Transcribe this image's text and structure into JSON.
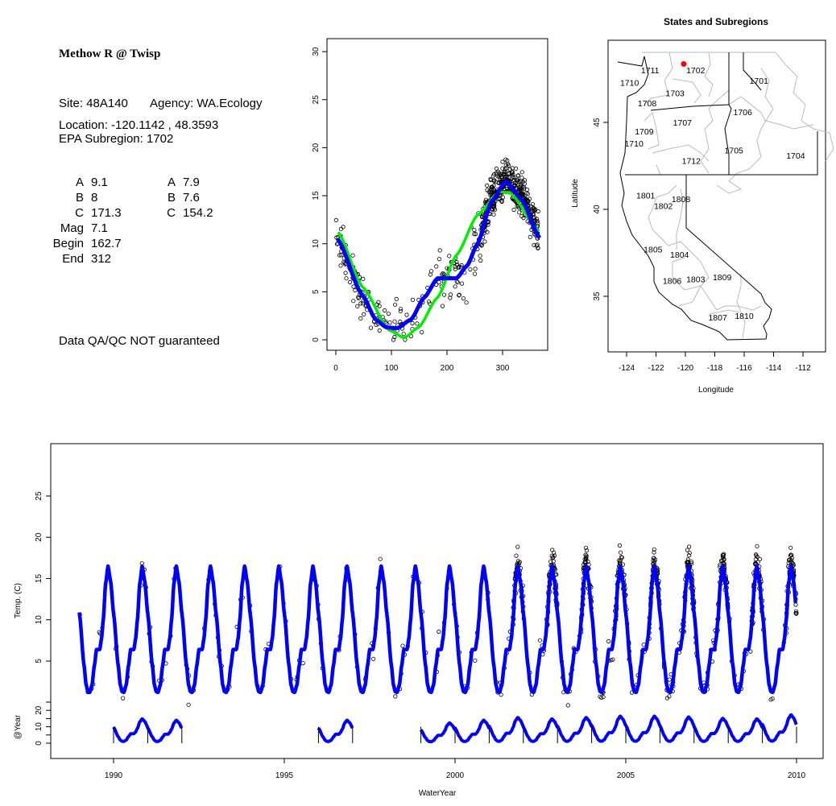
{
  "info_panel": {
    "title": "Methow R @ Twisp",
    "site": "Site: 48A140",
    "agency": "Agency: WA.Ecology",
    "location": "Location: -120.1142 , 48.3593",
    "subregion": "EPA Subregion: 1702",
    "params_left": [
      {
        "label": "A",
        "value": "9.1"
      },
      {
        "label": "B",
        "value": "8"
      },
      {
        "label": "C",
        "value": "171.3"
      },
      {
        "label": "Mag",
        "value": "7.1"
      },
      {
        "label": "Begin",
        "value": "162.7"
      },
      {
        "label": "End",
        "value": "312"
      }
    ],
    "params_right": [
      {
        "label": "A",
        "value": "7.9"
      },
      {
        "label": "B",
        "value": "7.6"
      },
      {
        "label": "C",
        "value": "154.2"
      }
    ],
    "disclaimer": "Data QA/QC NOT guaranteed",
    "disclaimer_color": "#c0392b"
  },
  "chart_data": [
    {
      "type": "scatter",
      "title": "",
      "xlabel": "",
      "ylabel": "",
      "xlim": [
        -5,
        370
      ],
      "ylim": [
        -1,
        31
      ],
      "x_ticks": [
        "0",
        "100",
        "200",
        "300"
      ],
      "y_ticks": [
        "0",
        "5",
        "10",
        "15",
        "20",
        "25",
        "30"
      ],
      "observation_density": [
        {
          "from": 0,
          "to": 60,
          "n": 70,
          "noise": 1.4
        },
        {
          "from": 60,
          "to": 150,
          "n": 45,
          "noise": 1.6
        },
        {
          "from": 150,
          "to": 260,
          "n": 70,
          "noise": 1.8
        },
        {
          "from": 260,
          "to": 365,
          "n": 420,
          "noise": 1.3
        }
      ],
      "series": [
        {
          "name": "blue fit",
          "color": "#0000ff",
          "x": [
            3,
            48,
            72,
            91,
            110,
            135,
            159,
            183,
            217,
            236,
            255,
            280,
            306,
            333,
            367
          ],
          "y": [
            10.5,
            4.6,
            2.1,
            1.3,
            1.2,
            2.1,
            4.4,
            6.4,
            6.4,
            7.7,
            10.0,
            14.4,
            16.5,
            14.7,
            10.6
          ]
        },
        {
          "name": "green fit",
          "color": "#00ee00",
          "x": [
            4,
            48,
            96,
            123,
            149,
            183,
            217,
            255,
            294,
            313,
            367
          ],
          "y": [
            11.2,
            5.5,
            1.0,
            0.2,
            1.3,
            4.4,
            8.8,
            13.0,
            15.4,
            15.3,
            11.3
          ]
        }
      ]
    },
    {
      "type": "map",
      "title": "States and Subregions",
      "xlabel": "Longitude",
      "ylabel": "Latitude",
      "x_ticks": [
        "-124",
        "-122",
        "-120",
        "-118",
        "-116",
        "-114",
        "-112"
      ],
      "y_ticks": [
        "35",
        "40",
        "45"
      ],
      "site": {
        "lon": -120.1142,
        "lat": 48.3593,
        "color": "#ff0000"
      },
      "regions": [
        {
          "id": "1702",
          "lon": -119.3,
          "lat": 48.0
        },
        {
          "id": "1701",
          "lon": -115.0,
          "lat": 47.4
        },
        {
          "id": "1711",
          "lon": -122.4,
          "lat": 48.0
        },
        {
          "id": "1710",
          "lon": -123.8,
          "lat": 47.3
        },
        {
          "id": "1703",
          "lon": -120.7,
          "lat": 46.7
        },
        {
          "id": "1708",
          "lon": -122.6,
          "lat": 46.1
        },
        {
          "id": "1706",
          "lon": -116.1,
          "lat": 45.6
        },
        {
          "id": "1707",
          "lon": -120.2,
          "lat": 45.0
        },
        {
          "id": "1709",
          "lon": -122.8,
          "lat": 44.5
        },
        {
          "id": "1710",
          "lon": -123.5,
          "lat": 43.8
        },
        {
          "id": "1705",
          "lon": -116.7,
          "lat": 43.4
        },
        {
          "id": "1704",
          "lon": -112.5,
          "lat": 43.1
        },
        {
          "id": "1712",
          "lon": -119.6,
          "lat": 42.8
        },
        {
          "id": "1801",
          "lon": -122.7,
          "lat": 40.8
        },
        {
          "id": "1808",
          "lon": -120.3,
          "lat": 40.6
        },
        {
          "id": "1802",
          "lon": -121.5,
          "lat": 40.2
        },
        {
          "id": "1805",
          "lon": -122.2,
          "lat": 37.7
        },
        {
          "id": "1804",
          "lon": -120.4,
          "lat": 37.4
        },
        {
          "id": "1809",
          "lon": -117.5,
          "lat": 36.1
        },
        {
          "id": "1803",
          "lon": -119.3,
          "lat": 36.0
        },
        {
          "id": "1806",
          "lon": -120.9,
          "lat": 35.9
        },
        {
          "id": "1810",
          "lon": -116.0,
          "lat": 33.9
        },
        {
          "id": "1807",
          "lon": -117.8,
          "lat": 33.8
        }
      ]
    },
    {
      "type": "line",
      "xlabel": "WaterYear",
      "ylabel": "Temp. (C)",
      "ylabel2": "@Year",
      "x_ticks": [
        "1990",
        "1995",
        "2000",
        "2005",
        "2010"
      ],
      "y_ticks": [
        "5",
        "10",
        "15",
        "20",
        "25"
      ],
      "y2_ticks": [
        "0",
        "10",
        "20"
      ],
      "fit_years": [
        1989,
        1990,
        1991,
        1992,
        1993,
        1994,
        1995,
        1996,
        1997,
        1998,
        1999,
        2000,
        2001,
        2002,
        2003,
        2004,
        2005,
        2006,
        2007,
        2008,
        2009
      ],
      "obs_per_year": [
        8,
        10,
        10,
        10,
        10,
        8,
        9,
        10,
        10,
        10,
        9,
        12,
        60,
        70,
        80,
        70,
        80,
        85,
        80,
        70,
        60
      ],
      "at_year_segments": [
        {
          "years": [
            1990,
            1991
          ],
          "scale": [
            0.9,
            0.85
          ]
        },
        {
          "years": [
            1996
          ],
          "scale": [
            0.85
          ]
        },
        {
          "years": [
            1999,
            2000,
            2001,
            2002,
            2003,
            2004,
            2005,
            2006,
            2007,
            2008,
            2009
          ],
          "scale": [
            0.75,
            0.85,
            0.95,
            0.9,
            0.95,
            1.0,
            1.0,
            0.97,
            0.92,
            0.9,
            1.05
          ]
        }
      ],
      "year_markers": [
        1990,
        1991,
        1992,
        1996,
        1997,
        1999,
        2000,
        2001,
        2002,
        2003,
        2004,
        2005,
        2006,
        2007,
        2008,
        2009,
        2010
      ]
    }
  ]
}
